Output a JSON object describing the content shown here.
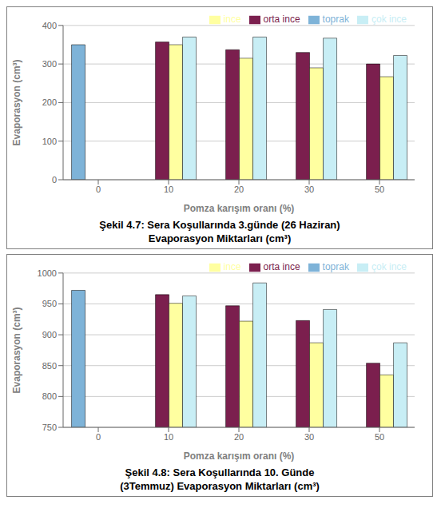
{
  "chart_data": [
    {
      "type": "bar",
      "title": "Şekil 4.7: Sera Koşullarında 3.günde (26 Haziran)",
      "subtitle": "Evaporasyon Miktarları (cm³)",
      "xlabel": "Pomza karışım oranı (%)",
      "ylabel": "Evaporasyon (cm³)",
      "categories": [
        0,
        10,
        20,
        30,
        50
      ],
      "series": [
        {
          "name": "toprak",
          "color": "#7EB3D8",
          "values": [
            350,
            null,
            null,
            null,
            null
          ]
        },
        {
          "name": "orta ince",
          "color": "#7B1F4E",
          "values": [
            null,
            357,
            337,
            330,
            300
          ]
        },
        {
          "name": "ince",
          "color": "#FFFFA0",
          "values": [
            null,
            350,
            315,
            290,
            267
          ]
        },
        {
          "name": "çok ince",
          "color": "#C8EEF5",
          "values": [
            null,
            370,
            370,
            367,
            322
          ]
        }
      ],
      "ylim": [
        0,
        400
      ],
      "yticks": [
        0,
        100,
        200,
        300,
        400
      ],
      "grid": true,
      "legend": "upper right"
    },
    {
      "type": "bar",
      "title": "Şekil 4.8: Sera Koşullarında 10. Günde",
      "subtitle": "(3Temmuz) Evaporasyon Miktarları (cm³)",
      "xlabel": "Pomza karışım oranı (%)",
      "ylabel": "Evaporasyon (cm³)",
      "categories": [
        0,
        10,
        20,
        30,
        50
      ],
      "series": [
        {
          "name": "toprak",
          "color": "#7EB3D8",
          "values": [
            972,
            null,
            null,
            null,
            null
          ]
        },
        {
          "name": "orta ince",
          "color": "#7B1F4E",
          "values": [
            null,
            965,
            947,
            923,
            854
          ]
        },
        {
          "name": "ince",
          "color": "#FFFFA0",
          "values": [
            null,
            951,
            922,
            887,
            835
          ]
        },
        {
          "name": "çok ince",
          "color": "#C8EEF5",
          "values": [
            null,
            963,
            984,
            941,
            887
          ]
        }
      ],
      "ylim": [
        750,
        1000
      ],
      "yticks": [
        750,
        800,
        850,
        900,
        950,
        1000
      ],
      "grid": true,
      "legend": "upper right"
    }
  ]
}
